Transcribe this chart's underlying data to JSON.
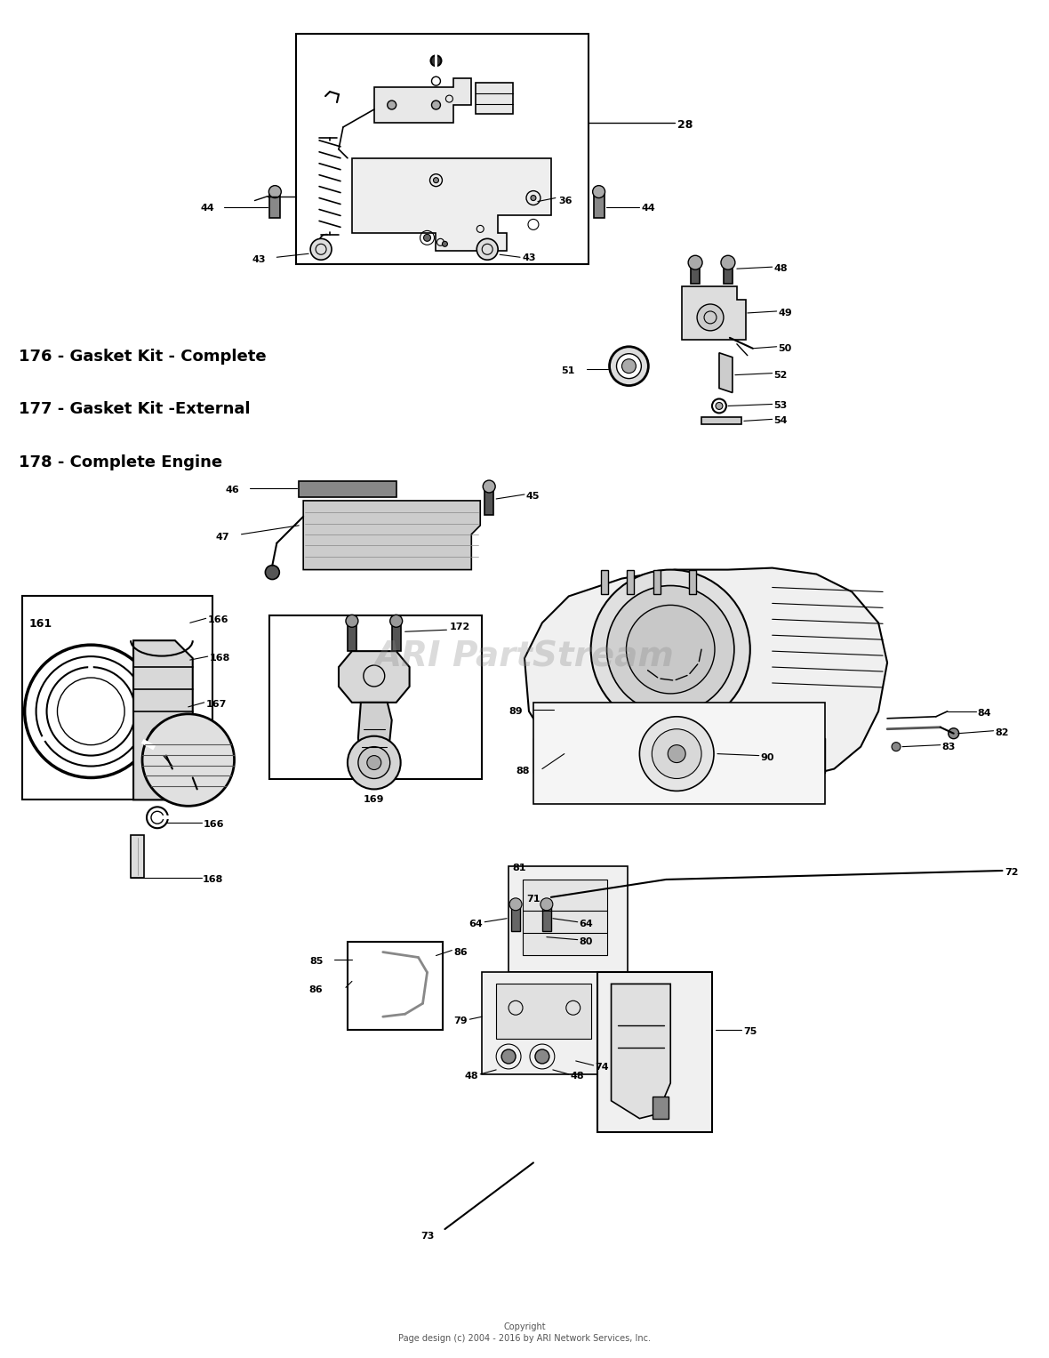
{
  "background_color": "#ffffff",
  "fig_width": 11.8,
  "fig_height": 15.27,
  "copyright_line1": "Copyright",
  "copyright_line2": "Page design (c) 2004 - 2016 by ARI Network Services, Inc.",
  "watermark": "ARI PartStream",
  "legend_items": [
    "176 - Gasket Kit - Complete",
    "177 - Gasket Kit -External",
    "178 - Complete Engine"
  ],
  "legend_fontsize": 13,
  "legend_fontweight": "bold"
}
